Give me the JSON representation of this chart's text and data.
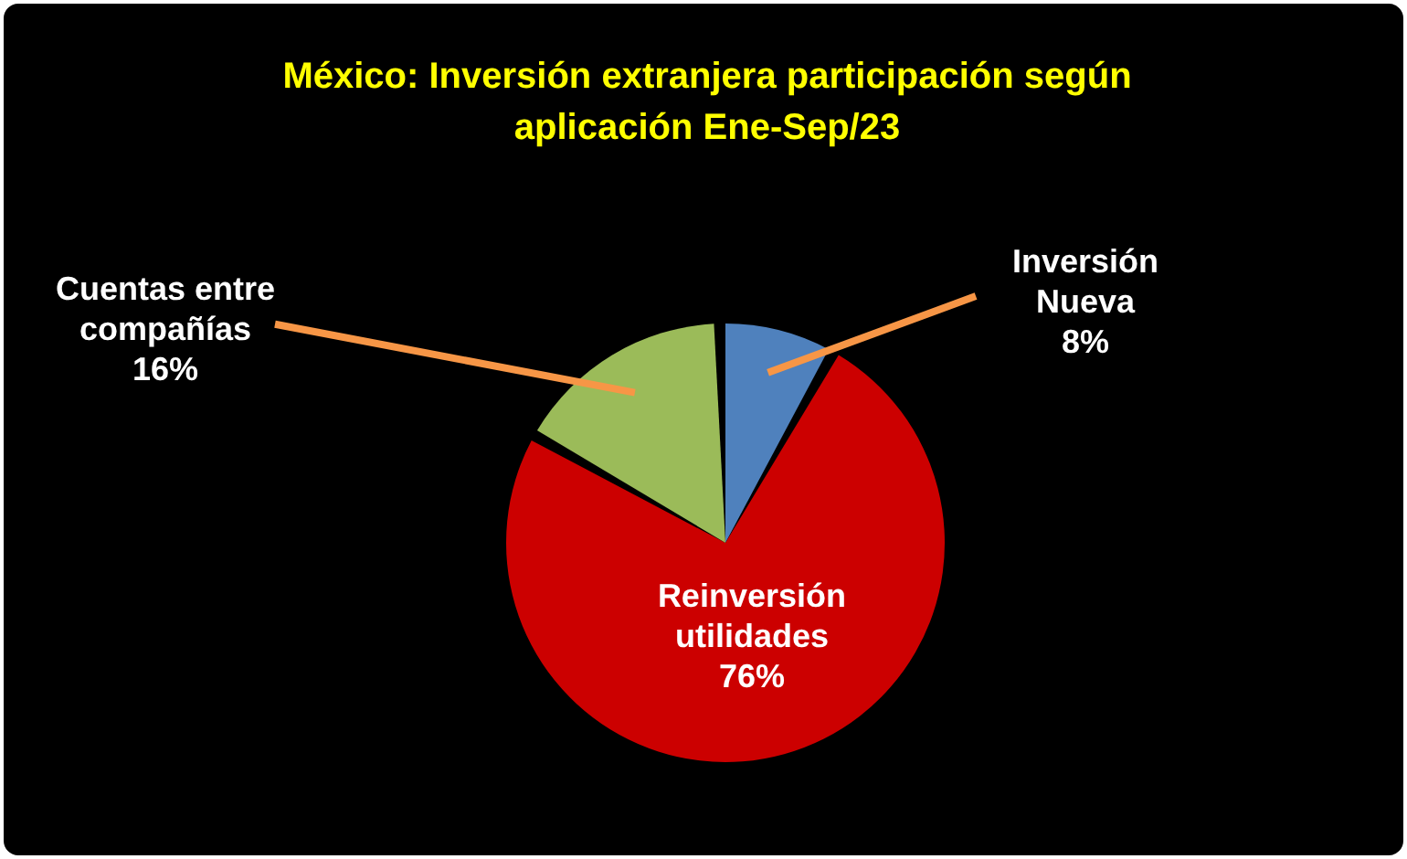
{
  "chart_data": {
    "type": "pie",
    "title": "México: Inversión extranjera participación según aplicación Ene-Sep/23",
    "categories": [
      "Inversión Nueva",
      "Reinversión utilidades",
      "Cuentas entre compañías"
    ],
    "values": [
      8,
      76,
      16
    ],
    "colors": [
      "#4f81bd",
      "#cc0000",
      "#9bbb59"
    ],
    "value_labels": [
      "8%",
      "76%",
      "16%"
    ],
    "legend": false
  }
}
